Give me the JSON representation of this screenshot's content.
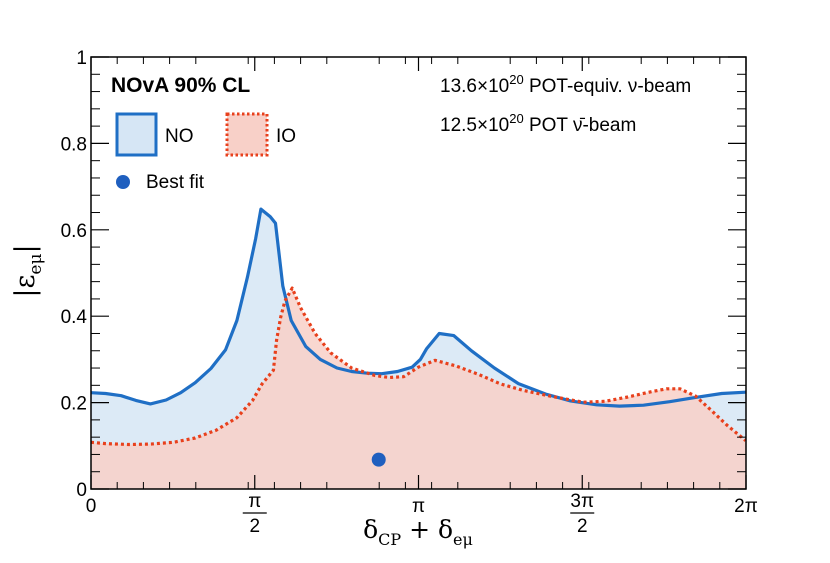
{
  "chart_data": {
    "type": "area",
    "title": "NOvA 90% CL",
    "annotations": [
      {
        "base": "13.6×10",
        "sup": "20",
        "rest": " POT-equiv. ν-beam"
      },
      {
        "base": "12.5×10",
        "sup": "20",
        "rest": " POT ν̄-beam"
      }
    ],
    "xlabel": {
      "main": "δ",
      "sub1": "CP",
      "mid": " + δ",
      "sub2": "eμ"
    },
    "ylabel": {
      "main": "|ε",
      "sub": "eμ",
      "end": "|"
    },
    "xlim": [
      0,
      6.2832
    ],
    "ylim": [
      0,
      1
    ],
    "x_ticks": [
      {
        "value": 0,
        "label": "0"
      },
      {
        "value": 1.5708,
        "num": "π",
        "den": "2"
      },
      {
        "value": 3.1416,
        "label": "π"
      },
      {
        "value": 4.7124,
        "num": "3π",
        "den": "2"
      },
      {
        "value": 6.2832,
        "label": "2π"
      }
    ],
    "y_ticks": [
      {
        "value": 0,
        "label": "0"
      },
      {
        "value": 0.2,
        "label": "0.2"
      },
      {
        "value": 0.4,
        "label": "0.4"
      },
      {
        "value": 0.6,
        "label": "0.6"
      },
      {
        "value": 0.8,
        "label": "0.8"
      },
      {
        "value": 1,
        "label": "1"
      }
    ],
    "series": [
      {
        "name": "NO",
        "style": "solid",
        "line_color": "#1f6fc5",
        "fill_color": "#d6e6f5",
        "points": [
          [
            0.0,
            0.223
          ],
          [
            0.14,
            0.221
          ],
          [
            0.29,
            0.216
          ],
          [
            0.43,
            0.205
          ],
          [
            0.57,
            0.197
          ],
          [
            0.72,
            0.206
          ],
          [
            0.86,
            0.223
          ],
          [
            1.0,
            0.246
          ],
          [
            1.15,
            0.279
          ],
          [
            1.29,
            0.322
          ],
          [
            1.4,
            0.39
          ],
          [
            1.5,
            0.49
          ],
          [
            1.58,
            0.58
          ],
          [
            1.63,
            0.648
          ],
          [
            1.72,
            0.63
          ],
          [
            1.77,
            0.615
          ],
          [
            1.84,
            0.47
          ],
          [
            1.92,
            0.39
          ],
          [
            2.06,
            0.33
          ],
          [
            2.2,
            0.3
          ],
          [
            2.36,
            0.28
          ],
          [
            2.5,
            0.272
          ],
          [
            2.65,
            0.268
          ],
          [
            2.79,
            0.267
          ],
          [
            2.94,
            0.272
          ],
          [
            3.08,
            0.282
          ],
          [
            3.16,
            0.3
          ],
          [
            3.22,
            0.325
          ],
          [
            3.34,
            0.36
          ],
          [
            3.48,
            0.355
          ],
          [
            3.65,
            0.32
          ],
          [
            3.87,
            0.28
          ],
          [
            4.1,
            0.244
          ],
          [
            4.36,
            0.22
          ],
          [
            4.6,
            0.204
          ],
          [
            4.85,
            0.195
          ],
          [
            5.07,
            0.192
          ],
          [
            5.3,
            0.194
          ],
          [
            5.55,
            0.202
          ],
          [
            5.8,
            0.212
          ],
          [
            6.05,
            0.221
          ],
          [
            6.28,
            0.224
          ]
        ]
      },
      {
        "name": "IO",
        "style": "dotted",
        "line_color": "#e8401c",
        "fill_color": "#f8d0c8",
        "points": [
          [
            0.0,
            0.108
          ],
          [
            0.14,
            0.105
          ],
          [
            0.36,
            0.103
          ],
          [
            0.57,
            0.104
          ],
          [
            0.79,
            0.108
          ],
          [
            1.0,
            0.118
          ],
          [
            1.2,
            0.136
          ],
          [
            1.4,
            0.165
          ],
          [
            1.55,
            0.205
          ],
          [
            1.64,
            0.243
          ],
          [
            1.75,
            0.275
          ],
          [
            1.78,
            0.345
          ],
          [
            1.82,
            0.398
          ],
          [
            1.86,
            0.435
          ],
          [
            1.93,
            0.465
          ],
          [
            2.01,
            0.42
          ],
          [
            2.15,
            0.36
          ],
          [
            2.3,
            0.315
          ],
          [
            2.5,
            0.28
          ],
          [
            2.72,
            0.263
          ],
          [
            2.86,
            0.258
          ],
          [
            3.0,
            0.26
          ],
          [
            3.14,
            0.282
          ],
          [
            3.3,
            0.298
          ],
          [
            3.5,
            0.285
          ],
          [
            3.72,
            0.265
          ],
          [
            3.93,
            0.243
          ],
          [
            4.15,
            0.228
          ],
          [
            4.43,
            0.214
          ],
          [
            4.72,
            0.201
          ],
          [
            4.93,
            0.203
          ],
          [
            5.15,
            0.213
          ],
          [
            5.37,
            0.225
          ],
          [
            5.52,
            0.232
          ],
          [
            5.65,
            0.232
          ],
          [
            5.8,
            0.215
          ],
          [
            5.95,
            0.182
          ],
          [
            6.1,
            0.148
          ],
          [
            6.28,
            0.112
          ]
        ]
      }
    ],
    "best_fit": {
      "name": "Best fit",
      "x": 2.76,
      "y": 0.068,
      "color": "#1f5fbf"
    },
    "legend_position": "top-left",
    "grid": false
  }
}
